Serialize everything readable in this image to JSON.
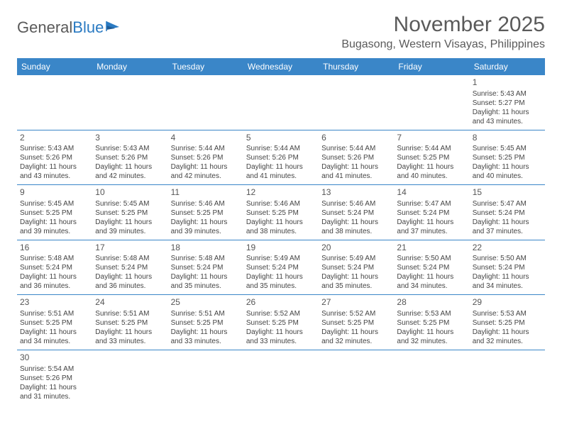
{
  "brand": {
    "part1": "General",
    "part2": "Blue"
  },
  "title": "November 2025",
  "location": "Bugasong, Western Visayas, Philippines",
  "colors": {
    "header_bg": "#3a86c8",
    "header_text": "#ffffff",
    "row_border": "#3a86c8",
    "text": "#444444",
    "title_text": "#5a5a5a",
    "background": "#ffffff"
  },
  "dayHeaders": [
    "Sunday",
    "Monday",
    "Tuesday",
    "Wednesday",
    "Thursday",
    "Friday",
    "Saturday"
  ],
  "weeks": [
    [
      null,
      null,
      null,
      null,
      null,
      null,
      {
        "d": "1",
        "sr": "5:43 AM",
        "ss": "5:27 PM",
        "dl": "11 hours and 43 minutes."
      }
    ],
    [
      {
        "d": "2",
        "sr": "5:43 AM",
        "ss": "5:26 PM",
        "dl": "11 hours and 43 minutes."
      },
      {
        "d": "3",
        "sr": "5:43 AM",
        "ss": "5:26 PM",
        "dl": "11 hours and 42 minutes."
      },
      {
        "d": "4",
        "sr": "5:44 AM",
        "ss": "5:26 PM",
        "dl": "11 hours and 42 minutes."
      },
      {
        "d": "5",
        "sr": "5:44 AM",
        "ss": "5:26 PM",
        "dl": "11 hours and 41 minutes."
      },
      {
        "d": "6",
        "sr": "5:44 AM",
        "ss": "5:26 PM",
        "dl": "11 hours and 41 minutes."
      },
      {
        "d": "7",
        "sr": "5:44 AM",
        "ss": "5:25 PM",
        "dl": "11 hours and 40 minutes."
      },
      {
        "d": "8",
        "sr": "5:45 AM",
        "ss": "5:25 PM",
        "dl": "11 hours and 40 minutes."
      }
    ],
    [
      {
        "d": "9",
        "sr": "5:45 AM",
        "ss": "5:25 PM",
        "dl": "11 hours and 39 minutes."
      },
      {
        "d": "10",
        "sr": "5:45 AM",
        "ss": "5:25 PM",
        "dl": "11 hours and 39 minutes."
      },
      {
        "d": "11",
        "sr": "5:46 AM",
        "ss": "5:25 PM",
        "dl": "11 hours and 39 minutes."
      },
      {
        "d": "12",
        "sr": "5:46 AM",
        "ss": "5:25 PM",
        "dl": "11 hours and 38 minutes."
      },
      {
        "d": "13",
        "sr": "5:46 AM",
        "ss": "5:24 PM",
        "dl": "11 hours and 38 minutes."
      },
      {
        "d": "14",
        "sr": "5:47 AM",
        "ss": "5:24 PM",
        "dl": "11 hours and 37 minutes."
      },
      {
        "d": "15",
        "sr": "5:47 AM",
        "ss": "5:24 PM",
        "dl": "11 hours and 37 minutes."
      }
    ],
    [
      {
        "d": "16",
        "sr": "5:48 AM",
        "ss": "5:24 PM",
        "dl": "11 hours and 36 minutes."
      },
      {
        "d": "17",
        "sr": "5:48 AM",
        "ss": "5:24 PM",
        "dl": "11 hours and 36 minutes."
      },
      {
        "d": "18",
        "sr": "5:48 AM",
        "ss": "5:24 PM",
        "dl": "11 hours and 35 minutes."
      },
      {
        "d": "19",
        "sr": "5:49 AM",
        "ss": "5:24 PM",
        "dl": "11 hours and 35 minutes."
      },
      {
        "d": "20",
        "sr": "5:49 AM",
        "ss": "5:24 PM",
        "dl": "11 hours and 35 minutes."
      },
      {
        "d": "21",
        "sr": "5:50 AM",
        "ss": "5:24 PM",
        "dl": "11 hours and 34 minutes."
      },
      {
        "d": "22",
        "sr": "5:50 AM",
        "ss": "5:24 PM",
        "dl": "11 hours and 34 minutes."
      }
    ],
    [
      {
        "d": "23",
        "sr": "5:51 AM",
        "ss": "5:25 PM",
        "dl": "11 hours and 34 minutes."
      },
      {
        "d": "24",
        "sr": "5:51 AM",
        "ss": "5:25 PM",
        "dl": "11 hours and 33 minutes."
      },
      {
        "d": "25",
        "sr": "5:51 AM",
        "ss": "5:25 PM",
        "dl": "11 hours and 33 minutes."
      },
      {
        "d": "26",
        "sr": "5:52 AM",
        "ss": "5:25 PM",
        "dl": "11 hours and 33 minutes."
      },
      {
        "d": "27",
        "sr": "5:52 AM",
        "ss": "5:25 PM",
        "dl": "11 hours and 32 minutes."
      },
      {
        "d": "28",
        "sr": "5:53 AM",
        "ss": "5:25 PM",
        "dl": "11 hours and 32 minutes."
      },
      {
        "d": "29",
        "sr": "5:53 AM",
        "ss": "5:25 PM",
        "dl": "11 hours and 32 minutes."
      }
    ],
    [
      {
        "d": "30",
        "sr": "5:54 AM",
        "ss": "5:26 PM",
        "dl": "11 hours and 31 minutes."
      },
      null,
      null,
      null,
      null,
      null,
      null
    ]
  ],
  "labels": {
    "sunrise": "Sunrise:",
    "sunset": "Sunset:",
    "daylight": "Daylight:"
  }
}
